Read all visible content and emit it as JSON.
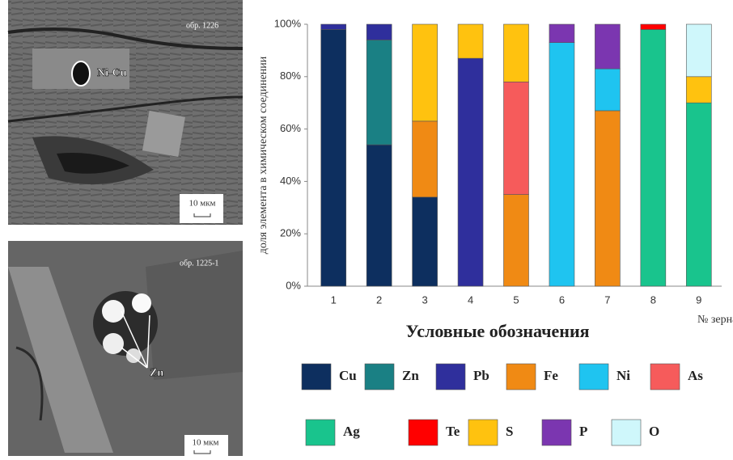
{
  "images": [
    {
      "sample": "обр. 1226",
      "mineral": "Ni-Cu",
      "scale": "10 мкм"
    },
    {
      "sample": "обр. 1225-1",
      "mineral": "Zn",
      "scale": "10 мкм"
    }
  ],
  "chart_data": {
    "type": "stacked-bar",
    "y_label": "доля элемента в химическом соединении",
    "x_label": "№ зерна",
    "legend_title": "Условные обозначения",
    "categories": [
      "1",
      "2",
      "3",
      "4",
      "5",
      "6",
      "7",
      "8",
      "9"
    ],
    "series": [
      {
        "name": "Cu",
        "color": "#0d2f5f",
        "values": [
          98,
          54,
          34,
          null,
          null,
          null,
          null,
          null,
          null
        ]
      },
      {
        "name": "Zn",
        "color": "#1a8084",
        "values": [
          null,
          40,
          null,
          null,
          null,
          null,
          null,
          null,
          null
        ]
      },
      {
        "name": "Pb",
        "color": "#2f2f9c",
        "values": [
          2,
          6,
          null,
          87,
          null,
          null,
          null,
          null,
          null
        ]
      },
      {
        "name": "Fe",
        "color": "#f08a14",
        "values": [
          null,
          null,
          29,
          null,
          35,
          null,
          67,
          null,
          null
        ]
      },
      {
        "name": "Ni",
        "color": "#1fc4f0",
        "values": [
          null,
          null,
          null,
          null,
          null,
          93,
          16,
          null,
          null
        ]
      },
      {
        "name": "As",
        "color": "#f65b5b",
        "values": [
          null,
          null,
          null,
          null,
          43,
          null,
          null,
          null,
          null
        ]
      },
      {
        "name": "Ag",
        "color": "#19c48d",
        "values": [
          null,
          null,
          null,
          null,
          null,
          null,
          null,
          98,
          70
        ]
      },
      {
        "name": "Te",
        "color": "#ff0000",
        "values": [
          null,
          null,
          null,
          null,
          null,
          null,
          null,
          2,
          null
        ]
      },
      {
        "name": "S",
        "color": "#ffc20f",
        "values": [
          null,
          null,
          37,
          13,
          22,
          null,
          null,
          null,
          10
        ]
      },
      {
        "name": "P",
        "color": "#7b36b0",
        "values": [
          null,
          null,
          null,
          null,
          null,
          7,
          17,
          null,
          null
        ]
      },
      {
        "name": "O",
        "color": "#cff7fb",
        "values": [
          null,
          null,
          null,
          null,
          null,
          null,
          null,
          null,
          20
        ]
      }
    ],
    "ylim": [
      0,
      100
    ],
    "yticks": [
      {
        "value": 0,
        "label": "0%"
      },
      {
        "value": 20,
        "label": "20%"
      },
      {
        "value": 40,
        "label": "40%"
      },
      {
        "value": 60,
        "label": "60%"
      },
      {
        "value": 80,
        "label": "80%"
      },
      {
        "value": 100,
        "label": "100%"
      }
    ]
  }
}
